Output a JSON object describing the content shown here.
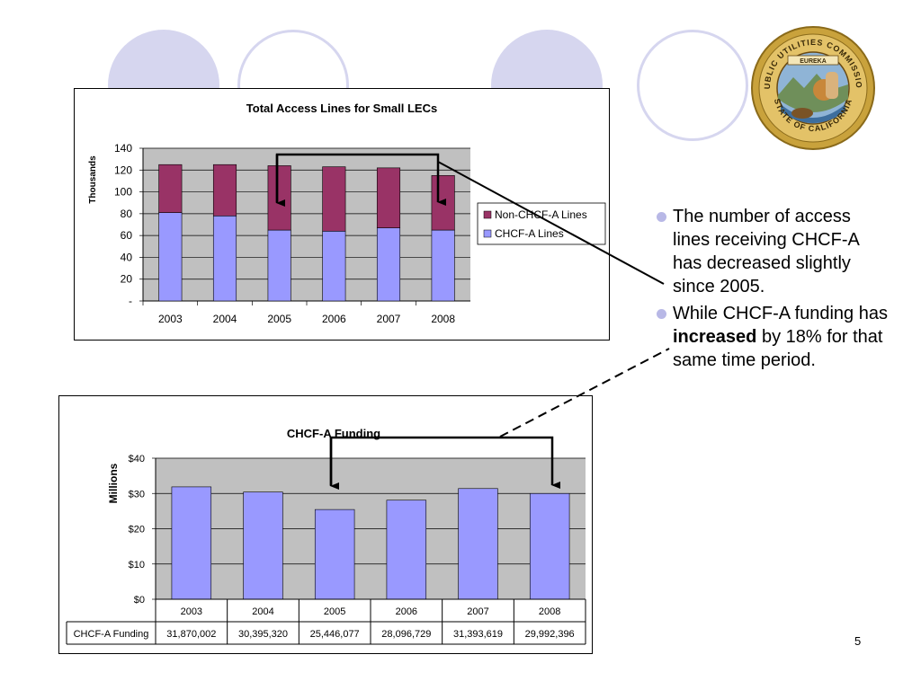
{
  "chart_data": [
    {
      "type": "bar",
      "stacked": true,
      "title": "Total Access Lines for Small LECs",
      "ylabel": "Thousands",
      "xlabel": "",
      "categories": [
        "2003",
        "2004",
        "2005",
        "2006",
        "2007",
        "2008"
      ],
      "series": [
        {
          "name": "CHCF-A Lines",
          "values": [
            81,
            78,
            65,
            64,
            67,
            65
          ],
          "color": "#9999ff"
        },
        {
          "name": "Non-CHCF-A Lines",
          "values": [
            44,
            47,
            59,
            59,
            55,
            50
          ],
          "color": "#993366"
        }
      ],
      "ylim": [
        0,
        140
      ],
      "yticks": [
        "-",
        "20",
        "40",
        "60",
        "80",
        "100",
        "120",
        "140"
      ],
      "grid": true,
      "legend": "right"
    },
    {
      "type": "bar",
      "title": "CHCF-A Funding",
      "ylabel": "Millions",
      "xlabel": "",
      "categories": [
        "2003",
        "2004",
        "2005",
        "2006",
        "2007",
        "2008"
      ],
      "series": [
        {
          "name": "CHCF-A Funding",
          "values": [
            31.870002,
            30.39532,
            25.446077,
            28.096729,
            31.393619,
            29.992396
          ],
          "color": "#9999ff"
        }
      ],
      "ylim": [
        0,
        40
      ],
      "yticks": [
        "$0",
        "$10",
        "$20",
        "$30",
        "$40"
      ],
      "grid": true,
      "data_table": {
        "row_label": "CHCF-A Funding",
        "cells": [
          "31,870,002",
          "30,395,320",
          "25,446,077",
          "28,096,729",
          "31,393,619",
          "29,992,396"
        ]
      }
    }
  ],
  "seal": {
    "top_text": "PUBLIC UTILITIES COMMISSION",
    "bottom_text": "STATE OF CALIFORNIA",
    "banner": "EUREKA"
  },
  "bullets": [
    {
      "text": "The number of access lines receiving CHCF-A has decreased slightly since 2005."
    },
    {
      "before": "While CHCF-A funding has ",
      "bold": "increased",
      "after": " by 18% for that same time period."
    }
  ],
  "page_number": "5",
  "colors": {
    "circle": "#d6d6ef",
    "plot_bg": "#c0c0c0",
    "bar": "#9999ff",
    "bar_top": "#993366",
    "bullet": "#b8b8e6"
  }
}
